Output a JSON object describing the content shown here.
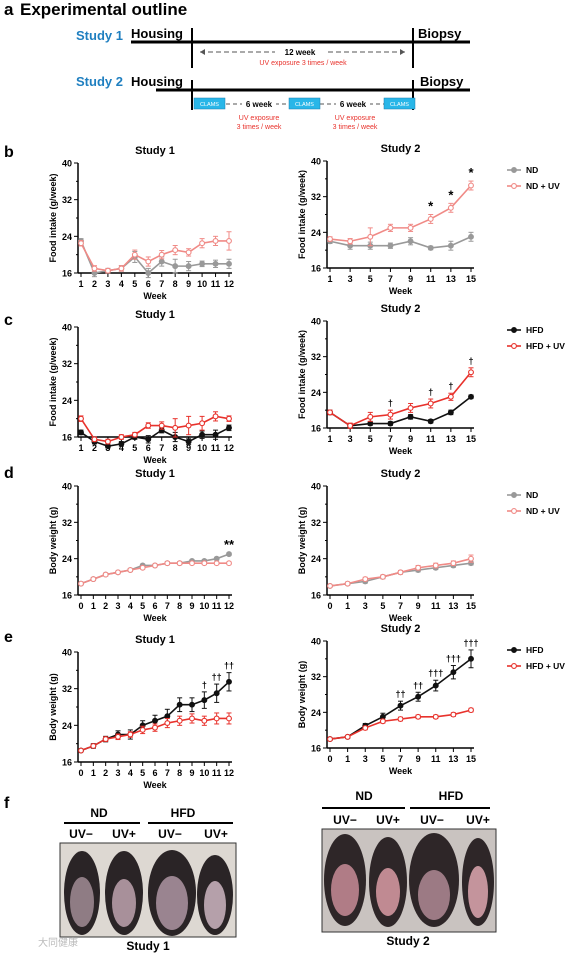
{
  "panel_a": {
    "letter": "a",
    "title": "Experimental outline",
    "study1": {
      "label": "Study 1",
      "start": "Housing",
      "end": "Biopsy",
      "duration": "12 week",
      "uv_note": "UV exposure 3 times / week"
    },
    "study2": {
      "label": "Study 2",
      "start": "Housing",
      "end": "Biopsy",
      "clams": [
        "CLAMS",
        "CLAMS",
        "CLAMS"
      ],
      "interval1": "6 week",
      "interval2": "6 week",
      "uv_note1": [
        "UV exposure",
        "3 times / week"
      ],
      "uv_note2": [
        "UV exposure",
        "3 times / week"
      ]
    }
  },
  "panel_f": {
    "letter": "f",
    "groups": [
      "ND",
      "HFD"
    ],
    "subgroups": [
      "UV−",
      "UV+",
      "UV−",
      "UV+"
    ],
    "study1_label": "Study 1",
    "study2_label": "Study 2",
    "watermark": "大同健康"
  },
  "colors": {
    "blue_title": "#1f7fc0",
    "red": "#e8322c",
    "pink": "#f08a86",
    "gray": "#999999",
    "black": "#111111",
    "clams": "#29b6e8"
  },
  "chart_data": [
    {
      "id": "b1",
      "panel": "b",
      "type": "line",
      "title": "Study 1",
      "xlabel": "Week",
      "ylabel": "Food intake (g/week)",
      "x": [
        1,
        2,
        3,
        4,
        5,
        6,
        7,
        8,
        9,
        10,
        11,
        12
      ],
      "ylim": [
        16,
        40
      ],
      "yticks": [
        16,
        24,
        32,
        40
      ],
      "series": [
        {
          "name": "ND",
          "color": "gray",
          "marker": "filled",
          "values": [
            23,
            16,
            16.5,
            17,
            19.5,
            16,
            18.5,
            17.5,
            17.5,
            18,
            18,
            18
          ],
          "errors": [
            0.5,
            0.8,
            0.5,
            0.6,
            1.2,
            1,
            1,
            1.5,
            1,
            0.6,
            0.8,
            1
          ]
        },
        {
          "name": "ND + UV",
          "color": "pink",
          "marker": "open",
          "values": [
            22.5,
            17,
            16.5,
            17,
            20,
            18.5,
            20,
            21,
            20.5,
            22.5,
            23,
            23
          ],
          "errors": [
            0.6,
            0.6,
            0.5,
            0.6,
            1,
            1,
            0.9,
            1,
            0.8,
            1,
            1,
            2
          ]
        }
      ],
      "annotations": []
    },
    {
      "id": "b2",
      "panel": "b",
      "type": "line",
      "title": "Study 2",
      "xlabel": "Week",
      "ylabel": "Food intake (g/week)",
      "x": [
        1,
        3,
        5,
        7,
        9,
        11,
        13,
        15
      ],
      "ylim": [
        16,
        40
      ],
      "yticks": [
        16,
        24,
        32,
        40
      ],
      "series": [
        {
          "name": "ND",
          "color": "gray",
          "marker": "filled",
          "values": [
            22,
            21,
            21,
            21,
            22,
            20.5,
            21,
            23
          ],
          "errors": [
            0.5,
            0.8,
            0.8,
            0.6,
            0.8,
            0.4,
            1,
            1
          ]
        },
        {
          "name": "ND + UV",
          "color": "pink",
          "marker": "open",
          "values": [
            22.5,
            22,
            23,
            25,
            25,
            27,
            29.5,
            34.5
          ],
          "errors": [
            0.5,
            0.6,
            2,
            0.8,
            0.8,
            1,
            1,
            1
          ]
        }
      ],
      "annotations": [
        {
          "x": 11,
          "text": "*"
        },
        {
          "x": 13,
          "text": "*"
        },
        {
          "x": 15,
          "text": "*"
        }
      ],
      "legend": [
        "ND",
        "ND + UV"
      ]
    },
    {
      "id": "c1",
      "panel": "c",
      "type": "line",
      "title": "Study 1",
      "xlabel": "Week",
      "ylabel": "Food intake (g/week)",
      "x": [
        1,
        2,
        3,
        4,
        5,
        6,
        7,
        8,
        9,
        10,
        11,
        12
      ],
      "ylim": [
        16,
        40
      ],
      "yticks": [
        16,
        24,
        32,
        40
      ],
      "series": [
        {
          "name": "HFD",
          "color": "black",
          "marker": "filled",
          "values": [
            17,
            15,
            14,
            14.5,
            16,
            15.5,
            17.5,
            16,
            15,
            16.5,
            16.5,
            18
          ],
          "errors": [
            0.5,
            0.5,
            0.4,
            0.5,
            0.5,
            0.8,
            0.6,
            1,
            0.6,
            0.8,
            1,
            0.6
          ]
        },
        {
          "name": "HFD + UV",
          "color": "red",
          "marker": "open",
          "values": [
            20,
            15.5,
            15,
            16,
            16.5,
            18.5,
            18.5,
            18,
            18.5,
            19,
            20.5,
            20
          ],
          "errors": [
            0.6,
            0.5,
            0.5,
            0.5,
            0.5,
            0.6,
            0.8,
            2,
            2,
            1.5,
            1,
            0.6
          ]
        }
      ],
      "annotations": []
    },
    {
      "id": "c2",
      "panel": "c",
      "type": "line",
      "title": "Study 2",
      "xlabel": "Week",
      "ylabel": "Food intake (g/week)",
      "x": [
        1,
        3,
        5,
        7,
        9,
        11,
        13,
        15
      ],
      "ylim": [
        16,
        40
      ],
      "yticks": [
        16,
        24,
        32,
        40
      ],
      "series": [
        {
          "name": "HFD",
          "color": "black",
          "marker": "filled",
          "values": [
            19.5,
            16.5,
            17,
            17,
            18.5,
            17.5,
            19.5,
            23
          ],
          "errors": [
            0.5,
            0.5,
            0.4,
            0.4,
            0.5,
            0.4,
            0.5,
            0.4
          ]
        },
        {
          "name": "HFD + UV",
          "color": "red",
          "marker": "open",
          "values": [
            19.5,
            16.5,
            18.5,
            19,
            20.5,
            21.5,
            23,
            28.5
          ],
          "errors": [
            0.5,
            0.6,
            1,
            1,
            1,
            1,
            0.8,
            1
          ]
        }
      ],
      "annotations": [
        {
          "x": 7,
          "text": "†"
        },
        {
          "x": 11,
          "text": "†"
        },
        {
          "x": 13,
          "text": "†"
        },
        {
          "x": 15,
          "text": "†"
        }
      ],
      "legend": [
        "HFD",
        "HFD + UV"
      ]
    },
    {
      "id": "d1",
      "panel": "d",
      "type": "line",
      "title": "Study 1",
      "xlabel": "Week",
      "ylabel": "Body weight (g)",
      "x": [
        0,
        1,
        2,
        3,
        4,
        5,
        6,
        7,
        8,
        9,
        10,
        11,
        12
      ],
      "ylim": [
        16,
        40
      ],
      "yticks": [
        16,
        24,
        32,
        40
      ],
      "series": [
        {
          "name": "ND",
          "color": "gray",
          "marker": "filled",
          "values": [
            18.5,
            19.5,
            20.5,
            21,
            21.5,
            22.5,
            22.5,
            23,
            23,
            23.5,
            23.5,
            24,
            25
          ],
          "errors": [
            0.3,
            0.3,
            0.3,
            0.3,
            0.3,
            0.3,
            0.3,
            0.3,
            0.3,
            0.3,
            0.3,
            0.3,
            0.3
          ]
        },
        {
          "name": "ND + UV",
          "color": "pink",
          "marker": "open",
          "values": [
            18.5,
            19.5,
            20.5,
            21,
            21.5,
            22,
            22.5,
            23,
            23,
            23,
            23,
            23,
            23
          ],
          "errors": [
            0.3,
            0.3,
            0.3,
            0.3,
            0.3,
            0.3,
            0.3,
            0.3,
            0.3,
            0.3,
            0.3,
            0.3,
            0.3
          ]
        }
      ],
      "annotations": [
        {
          "x": 12,
          "text": "**"
        }
      ]
    },
    {
      "id": "d2",
      "panel": "d",
      "type": "line",
      "title": "Study 2",
      "xlabel": "Week",
      "ylabel": "Body weight (g)",
      "x": [
        0,
        1,
        3,
        5,
        7,
        9,
        11,
        13,
        15
      ],
      "ylim": [
        16,
        40
      ],
      "yticks": [
        16,
        24,
        32,
        40
      ],
      "series": [
        {
          "name": "ND",
          "color": "gray",
          "marker": "filled",
          "values": [
            18,
            18.5,
            19,
            20,
            21,
            21.5,
            22,
            22.5,
            23
          ],
          "errors": [
            0.3,
            0.3,
            0.4,
            0.4,
            0.4,
            0.4,
            0.4,
            0.4,
            0.4
          ]
        },
        {
          "name": "ND + UV",
          "color": "pink",
          "marker": "open",
          "values": [
            18,
            18.5,
            19.5,
            20,
            21,
            22,
            22.5,
            23,
            24
          ],
          "errors": [
            0.3,
            0.3,
            0.4,
            0.4,
            0.4,
            0.5,
            0.5,
            0.5,
            0.8
          ]
        }
      ],
      "annotations": [],
      "legend": [
        "ND",
        "ND + UV"
      ]
    },
    {
      "id": "e1",
      "panel": "e",
      "type": "line",
      "title": "Study 1",
      "xlabel": "Week",
      "ylabel": "Body weight (g)",
      "x": [
        0,
        1,
        2,
        3,
        4,
        5,
        6,
        7,
        8,
        9,
        10,
        11,
        12
      ],
      "ylim": [
        16,
        40
      ],
      "yticks": [
        16,
        24,
        32,
        40
      ],
      "series": [
        {
          "name": "HFD",
          "color": "black",
          "marker": "filled",
          "values": [
            18.5,
            19.5,
            21,
            22,
            22,
            24,
            25,
            26,
            28.5,
            28.5,
            29.5,
            31,
            33.5
          ],
          "errors": [
            0.3,
            0.5,
            0.6,
            0.8,
            1,
            1,
            1.2,
            1.5,
            1.5,
            1.5,
            1.8,
            2,
            2
          ]
        },
        {
          "name": "HFD + UV",
          "color": "red",
          "marker": "open",
          "values": [
            18.5,
            19.5,
            21,
            21.5,
            22,
            23,
            23.5,
            24.5,
            25,
            25.5,
            25,
            25.5,
            25.5
          ],
          "errors": [
            0.3,
            0.4,
            0.5,
            0.6,
            0.6,
            0.8,
            0.8,
            1,
            1,
            1,
            1,
            1.2,
            1.2
          ]
        }
      ],
      "annotations": [
        {
          "x": 10,
          "text": "†"
        },
        {
          "x": 11,
          "text": "††"
        },
        {
          "x": 12,
          "text": "††"
        }
      ]
    },
    {
      "id": "e2",
      "panel": "e",
      "type": "line",
      "title": "Study 2",
      "xlabel": "Week",
      "ylabel": "Body weight (g)",
      "x": [
        0,
        1,
        3,
        5,
        7,
        9,
        11,
        13,
        15
      ],
      "ylim": [
        16,
        40
      ],
      "yticks": [
        16,
        24,
        32,
        40
      ],
      "series": [
        {
          "name": "HFD",
          "color": "black",
          "marker": "filled",
          "values": [
            18,
            18.5,
            21,
            23,
            25.5,
            27.5,
            30,
            33,
            36
          ],
          "errors": [
            0.3,
            0.3,
            0.5,
            0.8,
            1,
            1,
            1.2,
            1.5,
            2
          ]
        },
        {
          "name": "HFD + UV",
          "color": "red",
          "marker": "open",
          "values": [
            18,
            18.5,
            20.5,
            22,
            22.5,
            23,
            23,
            23.5,
            24.5
          ],
          "errors": [
            0.3,
            0.3,
            0.4,
            0.4,
            0.4,
            0.4,
            0.4,
            0.4,
            0.4
          ]
        }
      ],
      "annotations": [
        {
          "x": 7,
          "text": "††"
        },
        {
          "x": 9,
          "text": "††"
        },
        {
          "x": 11,
          "text": "†††"
        },
        {
          "x": 13,
          "text": "†††"
        },
        {
          "x": 15,
          "text": "†††"
        }
      ],
      "legend": [
        "HFD",
        "HFD + UV"
      ]
    }
  ]
}
